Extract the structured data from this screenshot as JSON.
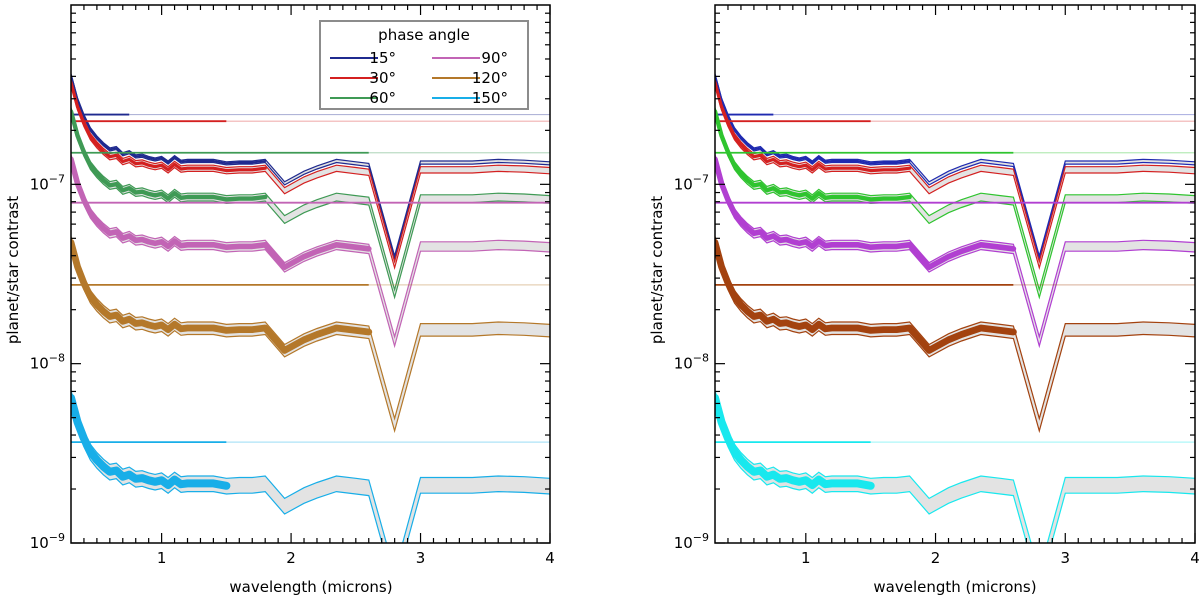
{
  "chart_data": {
    "type": "line",
    "xscale": "linear",
    "yscale": "log",
    "xlim": [
      0.3,
      4.0
    ],
    "ylim": [
      1e-09,
      1e-06
    ],
    "xlabel": "wavelength (microns)",
    "ylabel": "planet/star contrast",
    "x_ticks": [
      1,
      2,
      3,
      4
    ],
    "x_tick_labels": [
      "1",
      "2",
      "3",
      "4"
    ],
    "y_ticks": [
      1e-09,
      1e-08,
      1e-07
    ],
    "y_tick_base": "10",
    "y_tick_exponents": [
      "−9",
      "−8",
      "−7"
    ],
    "legend": {
      "title": "phase angle",
      "position": "top-right",
      "entries": [
        "15°",
        "30°",
        "60°",
        "90°",
        "120°",
        "150°"
      ]
    },
    "spectrum_x": [
      0.3,
      0.35,
      0.4,
      0.45,
      0.5,
      0.55,
      0.6,
      0.65,
      0.7,
      0.75,
      0.8,
      0.85,
      0.9,
      0.95,
      1.0,
      1.05,
      1.1,
      1.15,
      1.2,
      1.3,
      1.4,
      1.5,
      1.6,
      1.7,
      1.8,
      1.95,
      2.1,
      2.2,
      2.35,
      2.5,
      2.6,
      2.8,
      3.0,
      3.2,
      3.4,
      3.6,
      3.8,
      4.0
    ],
    "spectrum_shape": [
      3.0,
      2.2,
      1.78,
      1.5,
      1.35,
      1.24,
      1.16,
      1.18,
      1.09,
      1.12,
      1.06,
      1.07,
      1.04,
      1.02,
      1.04,
      0.98,
      1.05,
      0.99,
      1.0,
      1.0,
      1.0,
      0.97,
      0.98,
      0.98,
      1.0,
      0.75,
      0.86,
      0.92,
      1.0,
      0.97,
      0.95,
      0.29,
      0.98,
      0.98,
      0.98,
      1.0,
      0.99,
      0.97
    ],
    "panels": [
      {
        "name": "left",
        "series": [
          {
            "name": "15°",
            "color": "#1f2a8f",
            "scale": 1.35e-07,
            "band": 0.02,
            "ref_level": 2.45e-07,
            "ref_end": 0.75,
            "ref_color": "#1f2a8f"
          },
          {
            "name": "30°",
            "color": "#d42020",
            "scale": 1.23e-07,
            "band": 0.04,
            "ref_level": 2.25e-07,
            "ref_end": 1.5,
            "ref_color": "#d42020"
          },
          {
            "name": "60°",
            "color": "#3f9a55",
            "scale": 8.5e-08,
            "band": 0.05,
            "ref_level": 1.5e-07,
            "ref_end": 2.6,
            "ref_color": "#3f9a55"
          },
          {
            "name": "90°",
            "color": "#c264b5",
            "scale": 4.6e-08,
            "band": 0.06,
            "ref_level": 7.9e-08,
            "ref_end": 4.0,
            "ref_color": "#c264b5"
          },
          {
            "name": "120°",
            "color": "#b4782a",
            "scale": 1.58e-08,
            "band": 0.08,
            "ref_level": 2.75e-08,
            "ref_end": 2.6,
            "ref_color": "#b4782a"
          },
          {
            "name": "150°",
            "color": "#18aee8",
            "scale": 2.15e-09,
            "band": 0.1,
            "ref_level": 3.65e-09,
            "ref_end": 1.5,
            "ref_color": "#18aee8"
          }
        ]
      },
      {
        "name": "right",
        "series": [
          {
            "name": "15°",
            "color": "#1f2ab0",
            "scale": 1.35e-07,
            "band": 0.02,
            "ref_level": 2.45e-07,
            "ref_end": 0.75,
            "ref_color": "#1f2ab0"
          },
          {
            "name": "30°",
            "color": "#d42020",
            "scale": 1.23e-07,
            "band": 0.04,
            "ref_level": 2.25e-07,
            "ref_end": 1.5,
            "ref_color": "#d42020"
          },
          {
            "name": "60°",
            "color": "#2fc42f",
            "scale": 8.5e-08,
            "band": 0.05,
            "ref_level": 1.5e-07,
            "ref_end": 2.6,
            "ref_color": "#2fc42f"
          },
          {
            "name": "90°",
            "color": "#b13fd1",
            "scale": 4.6e-08,
            "band": 0.06,
            "ref_level": 7.9e-08,
            "ref_end": 4.0,
            "ref_color": "#b13fd1"
          },
          {
            "name": "120°",
            "color": "#a3420f",
            "scale": 1.58e-08,
            "band": 0.08,
            "ref_level": 2.75e-08,
            "ref_end": 2.6,
            "ref_color": "#a3420f"
          },
          {
            "name": "150°",
            "color": "#18e8ee",
            "scale": 2.15e-09,
            "band": 0.1,
            "ref_level": 3.65e-09,
            "ref_end": 1.5,
            "ref_color": "#18e8ee"
          }
        ]
      }
    ],
    "thick_until": [
      1.8,
      1.8,
      1.8,
      2.6,
      2.6,
      1.5
    ],
    "band_fill_color": "#e3e3e3"
  }
}
